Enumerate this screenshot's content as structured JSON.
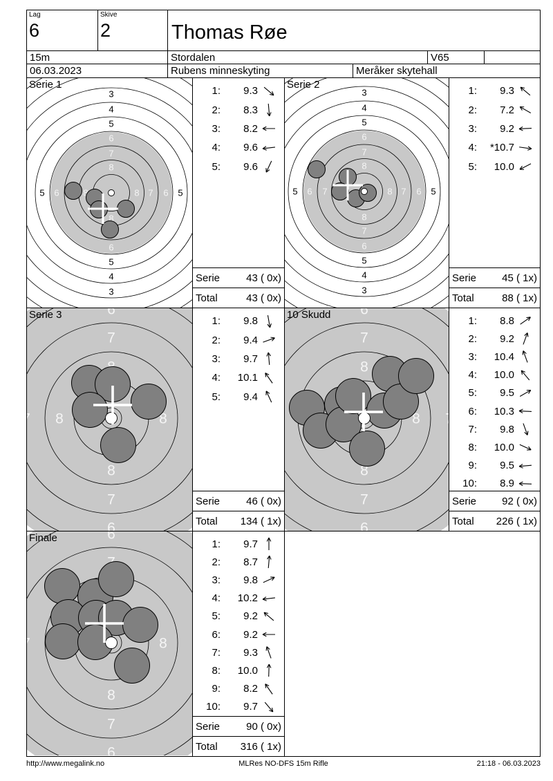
{
  "header": {
    "lag_label": "Lag",
    "lag_value": "6",
    "skive_label": "Skive",
    "skive_value": "2",
    "shooter_name": "Thomas Røe",
    "distance": "15m",
    "venue": "Stordalen",
    "shooter_class": "V65",
    "date": "06.03.2023",
    "event": "Rubens minneskyting",
    "hall": "Meråker skytehall"
  },
  "score_labels": {
    "serie": "Serie",
    "total": "Total"
  },
  "footer": {
    "url": "http://www.megalink.no",
    "center": "MLRes NO-DFS 15m Rifle",
    "right": "21:18 - 06.03.2023"
  },
  "colors": {
    "disc_gray": "#c8c8c8",
    "shot_gray": "#808080",
    "ring_line": "#000000",
    "marker_white": "#ffffff",
    "label_light": "#f5f5f5"
  },
  "target_layouts": {
    "full": {
      "rings": [
        26.5,
        47.5,
        68,
        89,
        110,
        131,
        152,
        173,
        194
      ],
      "disc_radius": 88,
      "dot_radius": 4.5,
      "hole_radius": 12.5,
      "cross_half": 22,
      "cross_stroke": 3,
      "label_font": 13,
      "labels": [
        {
          "t": "3",
          "r": 143,
          "c": "dark",
          "dirs": [
            "n",
            "s"
          ]
        },
        {
          "t": "4",
          "r": 121,
          "c": "dark",
          "dirs": [
            "n",
            "s"
          ]
        },
        {
          "t": "5",
          "r": 100,
          "c": "dark",
          "dirs": [
            "n",
            "s",
            "w",
            "e"
          ]
        },
        {
          "t": "6",
          "r": 79,
          "c": "light",
          "dirs": [
            "n",
            "s",
            "w",
            "e"
          ]
        },
        {
          "t": "7",
          "r": 57,
          "c": "light",
          "dirs": [
            "n",
            "s",
            "w",
            "e"
          ]
        },
        {
          "t": "8",
          "r": 37,
          "c": "light",
          "dirs": [
            "n",
            "s",
            "w",
            "e"
          ]
        }
      ]
    },
    "zoom": {
      "rings": [
        15,
        54,
        96,
        138,
        180
      ],
      "disc_radius": 197,
      "dot_radius": 8.5,
      "hole_radius": 25.5,
      "cross_half": 28,
      "cross_stroke": 3.6,
      "label_font": 21,
      "labels": [
        {
          "t": "6",
          "r": 158,
          "c": "light",
          "dirs": [
            "n",
            "s"
          ]
        },
        {
          "t": "7",
          "r": 117,
          "c": "light",
          "dirs": [
            "n",
            "s"
          ]
        },
        {
          "t": "7",
          "r": 123,
          "c": "light",
          "dirs": [
            "w",
            "e"
          ]
        },
        {
          "t": "8",
          "r": 75,
          "c": "light",
          "dirs": [
            "n",
            "s",
            "w",
            "e"
          ]
        }
      ]
    }
  },
  "series": [
    {
      "label": "Serie 1",
      "type": "full",
      "center": [
        122,
        166
      ],
      "shots": [
        {
          "n": "1:",
          "v": "9.3",
          "a": -40
        },
        {
          "n": "2:",
          "v": "8.3",
          "a": -85
        },
        {
          "n": "3:",
          "v": "8.2",
          "a": 180
        },
        {
          "n": "4:",
          "v": "9.6",
          "a": 187
        },
        {
          "n": "5:",
          "v": "9.6",
          "a": 245
        }
      ],
      "holes": [
        [
          -55,
          -3
        ],
        [
          -24,
          7
        ],
        [
          -18,
          24
        ],
        [
          21,
          23
        ],
        [
          -2,
          53
        ]
      ],
      "mpi": [
        -12,
        23
      ],
      "serie_value": "43 ( 0x)",
      "total_value": "43 ( 0x)"
    },
    {
      "label": "Serie 2",
      "type": "full",
      "center": [
        115,
        164
      ],
      "shots": [
        {
          "n": "1:",
          "v": "9.3",
          "a": 140
        },
        {
          "n": "2:",
          "v": "7.2",
          "a": 150
        },
        {
          "n": "3:",
          "v": "9.2",
          "a": 183
        },
        {
          "n": "4:",
          "v": "*10.7",
          "a": -8
        },
        {
          "n": "5:",
          "v": "10.0",
          "a": 207
        }
      ],
      "holes": [
        [
          -69,
          -32
        ],
        [
          -24,
          -21
        ],
        [
          -35,
          0
        ],
        [
          -12,
          10
        ],
        [
          5,
          2
        ]
      ],
      "mpi": [
        -24,
        -9
      ],
      "serie_value": "45 ( 1x)",
      "total_value": "88 ( 1x)"
    },
    {
      "label": "Serie 3",
      "type": "zoom",
      "center": [
        122,
        159
      ],
      "shots": [
        {
          "n": "1:",
          "v": "9.8",
          "a": -80
        },
        {
          "n": "2:",
          "v": "9.4",
          "a": 20
        },
        {
          "n": "3:",
          "v": "9.7",
          "a": 95
        },
        {
          "n": "4:",
          "v": "10.1",
          "a": 125
        },
        {
          "n": "5:",
          "v": "9.4",
          "a": 115
        }
      ],
      "holes": [
        [
          -32,
          -51
        ],
        [
          2,
          -49
        ],
        [
          -31,
          -12
        ],
        [
          54,
          -24
        ],
        [
          10,
          39
        ]
      ],
      "mpi": [
        2,
        -19
      ],
      "serie_value": "46 ( 0x)",
      "total_value": "134 ( 1x)"
    },
    {
      "label": "10 Skudd",
      "type": "zoom",
      "center": [
        115,
        159
      ],
      "shots": [
        {
          "n": "1:",
          "v": "8.8",
          "a": 35
        },
        {
          "n": "2:",
          "v": "9.2",
          "a": 70
        },
        {
          "n": "3:",
          "v": "10.4",
          "a": 110
        },
        {
          "n": "4:",
          "v": "10.0",
          "a": 130
        },
        {
          "n": "5:",
          "v": "9.5",
          "a": 30
        },
        {
          "n": "6:",
          "v": "10.3",
          "a": 177
        },
        {
          "n": "7:",
          "v": "9.8",
          "a": -70
        },
        {
          "n": "8:",
          "v": "10.0",
          "a": -25
        },
        {
          "n": "9:",
          "v": "9.5",
          "a": 185
        },
        {
          "n": "10:",
          "v": "8.9",
          "a": 178
        }
      ],
      "holes": [
        [
          -83,
          -15
        ],
        [
          -63,
          18
        ],
        [
          -32,
          -20
        ],
        [
          -30,
          9
        ],
        [
          -16,
          -32
        ],
        [
          4,
          44
        ],
        [
          29,
          -11
        ],
        [
          37,
          -64
        ],
        [
          53,
          -24
        ],
        [
          75,
          -61
        ]
      ],
      "mpi": [
        -1,
        -9
      ],
      "serie_value": "92 ( 0x)",
      "total_value": "226 ( 1x)"
    },
    {
      "label": "Finale",
      "type": "zoom",
      "center": [
        122,
        161
      ],
      "shots": [
        {
          "n": "1:",
          "v": "9.7",
          "a": 90
        },
        {
          "n": "2:",
          "v": "8.7",
          "a": 85
        },
        {
          "n": "3:",
          "v": "9.8",
          "a": 25
        },
        {
          "n": "4:",
          "v": "10.2",
          "a": 187
        },
        {
          "n": "5:",
          "v": "9.2",
          "a": 140
        },
        {
          "n": "6:",
          "v": "9.2",
          "a": 180
        },
        {
          "n": "7:",
          "v": "9.3",
          "a": 110
        },
        {
          "n": "8:",
          "v": "10.0",
          "a": 88
        },
        {
          "n": "9:",
          "v": "8.2",
          "a": 125
        },
        {
          "n": "10:",
          "v": "9.7",
          "a": -50
        }
      ],
      "holes": [
        [
          -71,
          -82
        ],
        [
          -23,
          -67
        ],
        [
          7,
          -92
        ],
        [
          -62,
          -37
        ],
        [
          -22,
          -36
        ],
        [
          7,
          -36
        ],
        [
          42,
          -26
        ],
        [
          -70,
          -2
        ],
        [
          -23,
          -1
        ],
        [
          30,
          33
        ]
      ],
      "mpi": [
        -10,
        -28
      ],
      "serie_value": "90 ( 0x)",
      "total_value": "316 ( 1x)"
    }
  ]
}
